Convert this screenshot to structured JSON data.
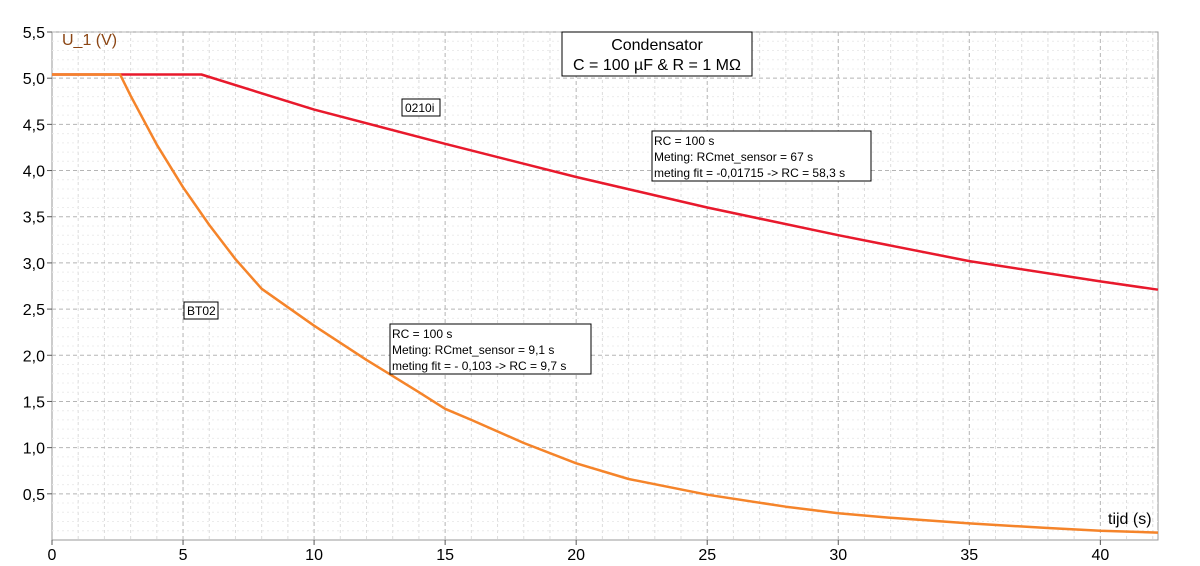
{
  "chart_data": {
    "type": "line",
    "title_lines": [
      "Condensator",
      "C = 100 µF  & R = 1 MΩ"
    ],
    "ylabel": "U_1 (V)",
    "xlabel": "tijd (s)",
    "xlim": [
      0,
      42.2
    ],
    "ylim": [
      0,
      5.5
    ],
    "grid": true,
    "x_ticks": [
      0,
      5,
      10,
      15,
      20,
      25,
      30,
      35,
      40
    ],
    "x_tick_labels": [
      "0",
      "5",
      "10",
      "15",
      "20",
      "25",
      "30",
      "35",
      "40"
    ],
    "y_ticks": [
      0.5,
      1.0,
      1.5,
      2.0,
      2.5,
      3.0,
      3.5,
      4.0,
      4.5,
      5.0,
      5.5
    ],
    "y_tick_labels": [
      "0,5",
      "1,0",
      "1,5",
      "2,0",
      "2,5",
      "3,0",
      "3,5",
      "4,0",
      "4,5",
      "5,0",
      "5,5"
    ],
    "series": [
      {
        "name": "0210i",
        "color": "#e8192c",
        "x": [
          0,
          5.7,
          10,
          15,
          20,
          25,
          30,
          35,
          40,
          42.2
        ],
        "y": [
          5.04,
          5.04,
          4.66,
          4.29,
          3.93,
          3.6,
          3.3,
          3.02,
          2.8,
          2.71
        ]
      },
      {
        "name": "BT02",
        "color": "#f5842a",
        "x": [
          0,
          2.6,
          3,
          4,
          5,
          6,
          7,
          8,
          10,
          12,
          14,
          15,
          16,
          18,
          20,
          22,
          25,
          28,
          30,
          32,
          35,
          38,
          40,
          42.2
        ],
        "y": [
          5.04,
          5.04,
          4.81,
          4.28,
          3.82,
          3.41,
          3.04,
          2.72,
          2.32,
          1.95,
          1.6,
          1.42,
          1.3,
          1.05,
          0.83,
          0.66,
          0.49,
          0.36,
          0.29,
          0.24,
          0.18,
          0.13,
          0.1,
          0.08
        ]
      }
    ],
    "annotations": [
      {
        "id": "label-0210i",
        "lines": [
          "0210i"
        ]
      },
      {
        "id": "label-bt02",
        "lines": [
          "BT02"
        ]
      },
      {
        "id": "box-red",
        "lines": [
          "RC = 100 s",
          "Meting: RCmet_sensor = 67 s",
          "meting fit = -0,01715 -> RC = 58,3 s"
        ]
      },
      {
        "id": "box-orange",
        "lines": [
          "RC = 100 s",
          "Meting: RCmet_sensor = 9,1 s",
          "meting fit = - 0,103 -> RC = 9,7 s"
        ]
      }
    ]
  }
}
